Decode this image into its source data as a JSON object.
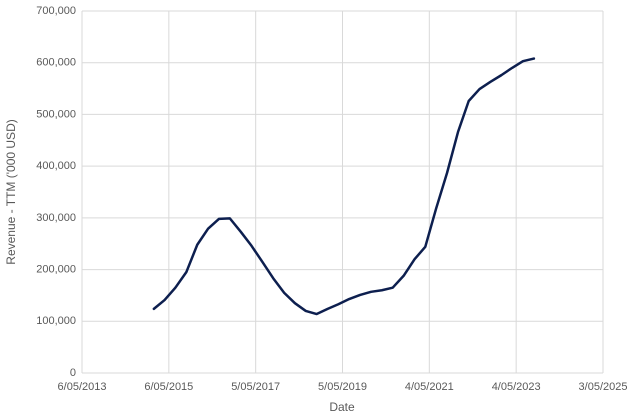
{
  "chart_data": {
    "type": "line",
    "x_label": "Date",
    "y_label": "Revenue - TTM ('000 USD)",
    "x": [
      "2014-12-31",
      "2015-03-31",
      "2015-06-30",
      "2015-09-30",
      "2015-12-31",
      "2016-03-31",
      "2016-06-30",
      "2016-09-30",
      "2016-12-31",
      "2017-03-31",
      "2017-06-30",
      "2017-09-30",
      "2017-12-31",
      "2018-03-31",
      "2018-06-30",
      "2018-09-30",
      "2018-12-31",
      "2019-03-31",
      "2019-06-30",
      "2019-09-30",
      "2019-12-31",
      "2020-03-31",
      "2020-06-30",
      "2020-09-30",
      "2020-12-31",
      "2021-03-31",
      "2021-06-30",
      "2021-09-30",
      "2021-12-31",
      "2022-03-31",
      "2022-06-30",
      "2022-09-30",
      "2022-12-31",
      "2023-03-31",
      "2023-06-30",
      "2023-09-30"
    ],
    "series": [
      {
        "name": "Revenue - TTM",
        "color": "#0d1f4f",
        "values": [
          124000,
          141000,
          165000,
          195000,
          248000,
          279000,
          298000,
          299000,
          273000,
          246000,
          215000,
          183000,
          155000,
          135000,
          120000,
          114000,
          124000,
          133000,
          143000,
          151000,
          157000,
          160000,
          165000,
          188000,
          220000,
          244000,
          318000,
          387000,
          466000,
          526000,
          549000,
          563000,
          576000,
          590000,
          603000,
          608000
        ]
      }
    ],
    "xlim": [
      "2013-05-06",
      "2025-05-03"
    ],
    "xticks": [
      {
        "value": "2013-05-06",
        "label": "6/05/2013"
      },
      {
        "value": "2015-05-06",
        "label": "6/05/2015"
      },
      {
        "value": "2017-05-05",
        "label": "5/05/2017"
      },
      {
        "value": "2019-05-05",
        "label": "5/05/2019"
      },
      {
        "value": "2021-05-04",
        "label": "4/05/2021"
      },
      {
        "value": "2023-05-04",
        "label": "4/05/2023"
      },
      {
        "value": "2025-05-03",
        "label": "3/05/2025"
      }
    ],
    "ylim": [
      0,
      700000
    ],
    "yticks": [
      0,
      {
        "value": 100000,
        "label": "100,000"
      },
      {
        "value": 200000,
        "label": "200,000"
      },
      {
        "value": 300000,
        "label": "300,000"
      },
      {
        "value": 400000,
        "label": "400,000"
      },
      {
        "value": 500000,
        "label": "500,000"
      },
      {
        "value": 600000,
        "label": "600,000"
      },
      {
        "value": 700000,
        "label": "700,000"
      }
    ],
    "grid": true
  }
}
